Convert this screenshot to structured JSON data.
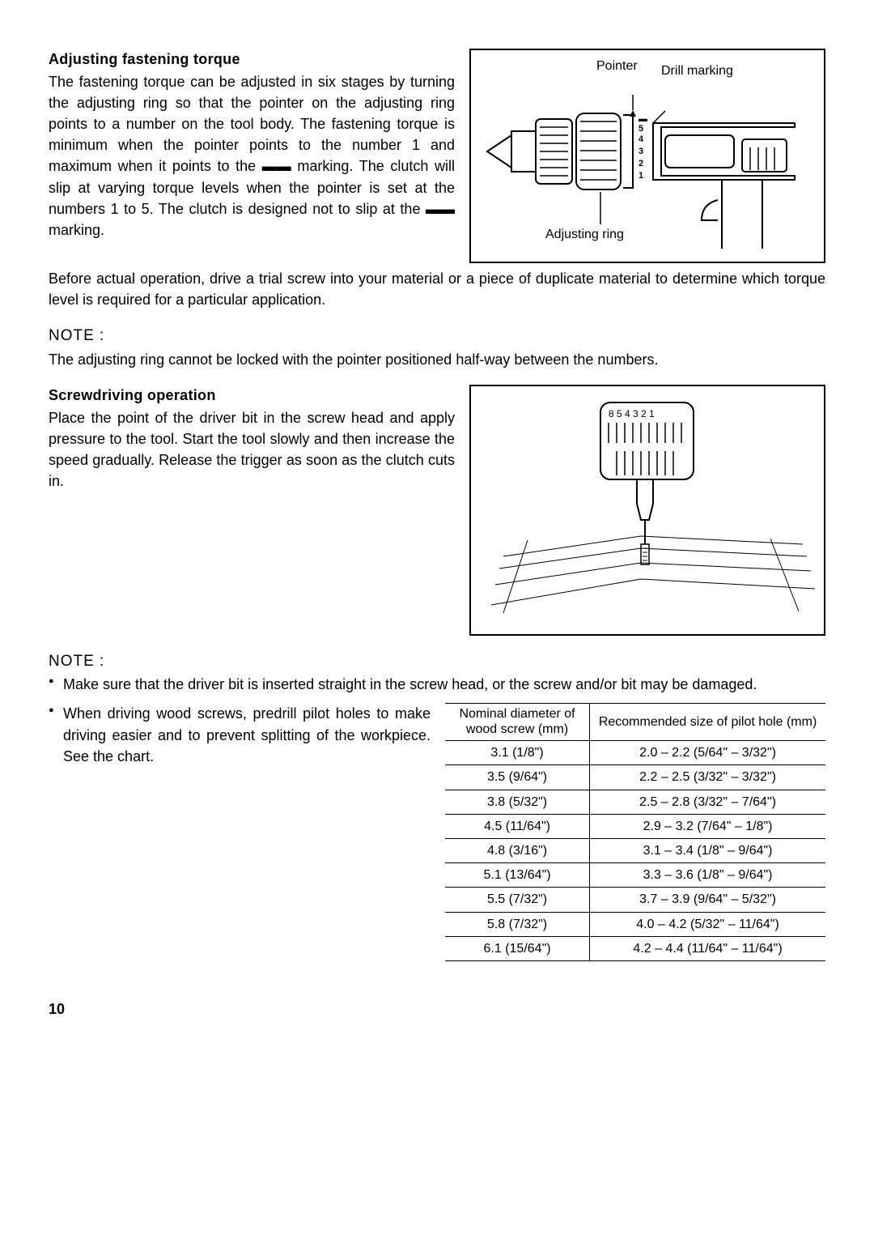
{
  "section1": {
    "heading": "Adjusting fastening torque",
    "p1": "The fastening torque can be adjusted in six stages by turning the adjusting ring so that the pointer on the adjusting ring points to a number on the tool body. The fastening torque is minimum when the pointer points to the number 1 and maximum when it points to the ▬▬ marking. The clutch will slip at varying torque levels when the pointer is set at the numbers 1 to 5. The clutch is designed not to slip at the ▬▬ marking.",
    "p2": "Before actual operation, drive a trial screw into your material or a piece of duplicate material to determine which torque level is required for a particular application.",
    "note_label": "NOTE :",
    "note_text": "The adjusting ring cannot be locked with the pointer positioned half-way between the numbers.",
    "fig": {
      "pointer": "Pointer",
      "drill_marking": "Drill marking",
      "adjusting_ring": "Adjusting ring"
    }
  },
  "section2": {
    "heading": "Screwdriving operation",
    "p1": "Place the point of the driver bit in the screw head and apply pressure to the tool. Start the tool slowly and then increase the speed gradually. Release the trigger as soon as the clutch cuts in."
  },
  "notes2": {
    "label": "NOTE :",
    "item1": "Make sure that the driver bit is inserted straight in the screw head, or the screw and/or bit may be damaged.",
    "item2": "When driving wood screws, predrill pilot holes to make driving easier and to prevent splitting of the workpiece. See the chart."
  },
  "table": {
    "col1_header": "Nominal diameter of wood screw (mm)",
    "col2_header": "Recommended size of pilot hole (mm)",
    "rows": [
      [
        "3.1 (1/8\")",
        "2.0 – 2.2 (5/64\" – 3/32\")"
      ],
      [
        "3.5 (9/64\")",
        "2.2 – 2.5 (3/32\" – 3/32\")"
      ],
      [
        "3.8 (5/32\")",
        "2.5 – 2.8 (3/32\" – 7/64\")"
      ],
      [
        "4.5 (11/64\")",
        "2.9 – 3.2 (7/64\" – 1/8\")"
      ],
      [
        "4.8 (3/16\")",
        "3.1 – 3.4 (1/8\" – 9/64\")"
      ],
      [
        "5.1 (13/64\")",
        "3.3 – 3.6 (1/8\" – 9/64\")"
      ],
      [
        "5.5 (7/32\")",
        "3.7 – 3.9 (9/64\" – 5/32\")"
      ],
      [
        "5.8 (7/32\")",
        "4.0 – 4.2 (5/32\" – 11/64\")"
      ],
      [
        "6.1 (15/64\")",
        "4.2 – 4.4 (11/64\" – 11/64\")"
      ]
    ]
  },
  "page_number": "10"
}
